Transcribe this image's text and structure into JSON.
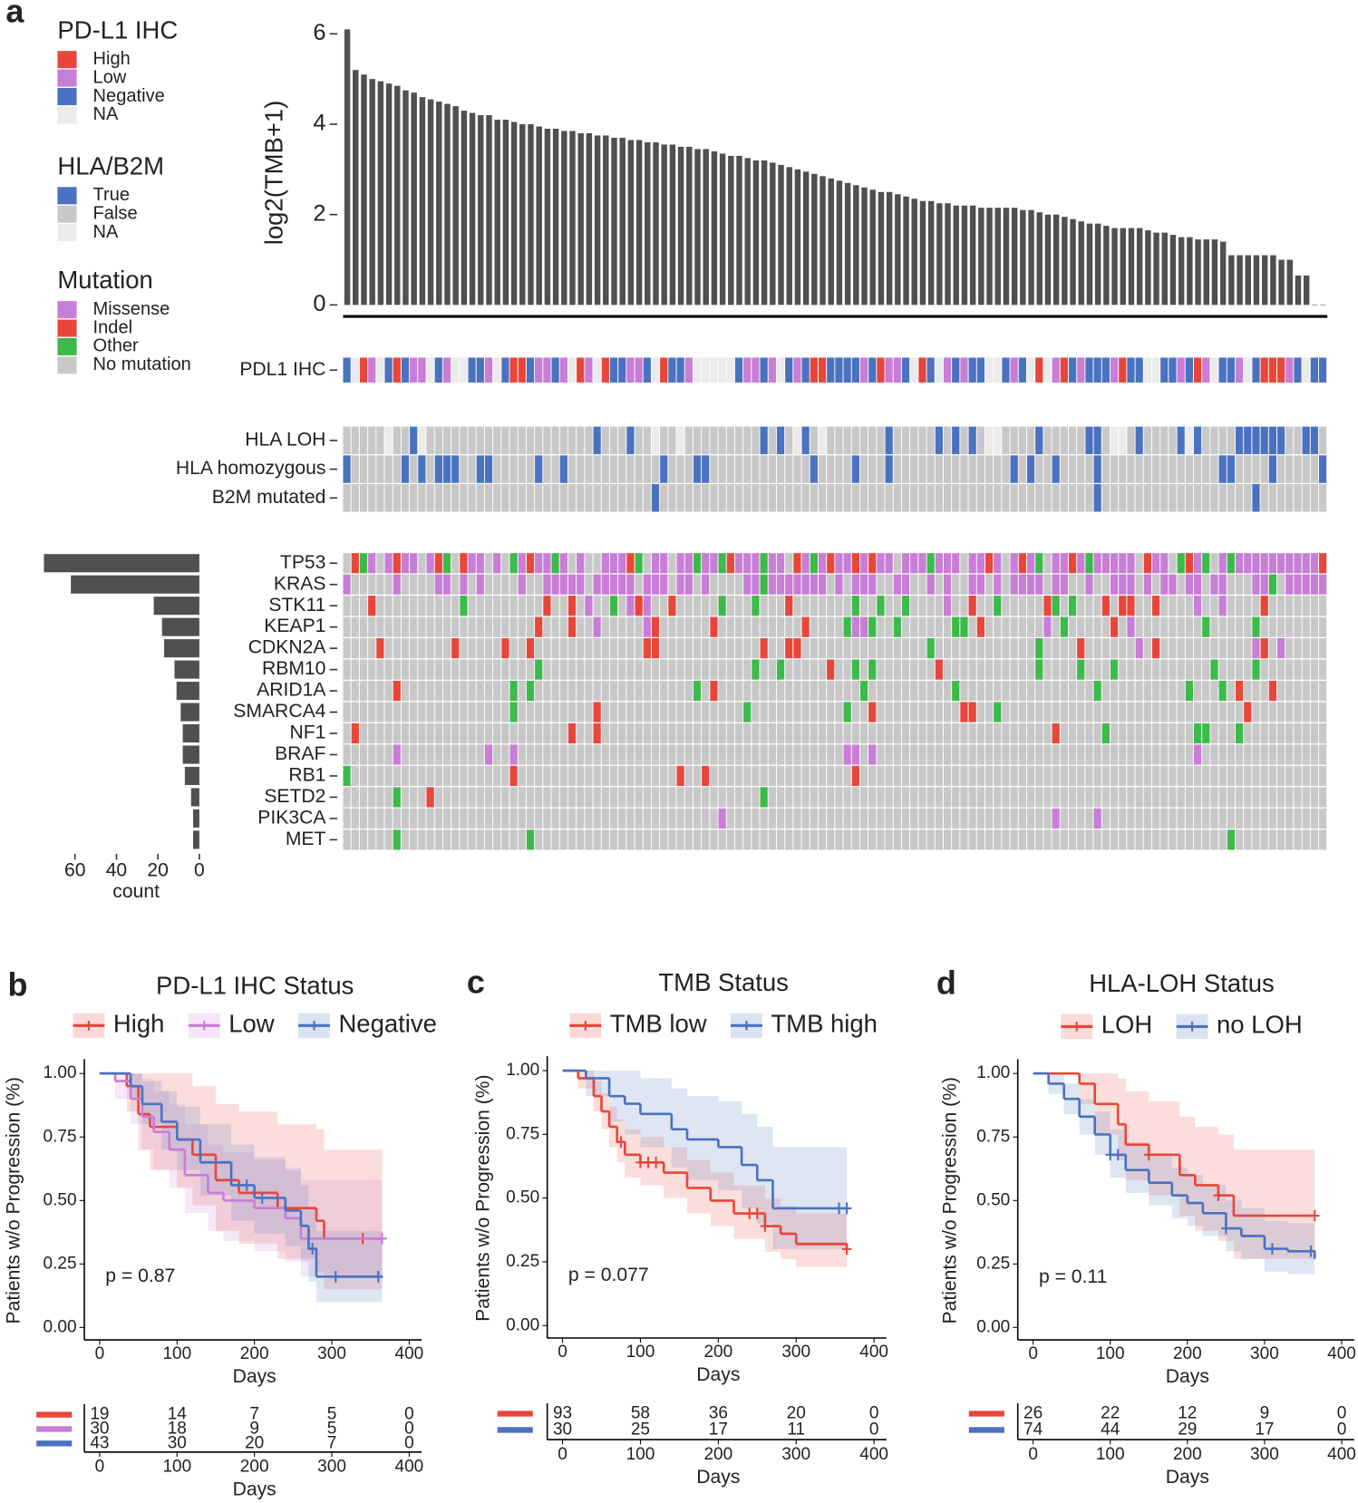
{
  "chart_data": [
    {
      "type": "oncoprint",
      "panel": "a",
      "ylabel": "log2(TMB+1)",
      "ylim": [
        0,
        6.3
      ],
      "yticks": [
        0,
        2,
        4,
        6
      ],
      "color": "#505050",
      "values": [
        6.1,
        5.2,
        5.1,
        5.0,
        4.95,
        4.9,
        4.85,
        4.75,
        4.7,
        4.6,
        4.55,
        4.5,
        4.45,
        4.4,
        4.3,
        4.25,
        4.2,
        4.2,
        4.1,
        4.1,
        4.05,
        4.0,
        4.0,
        3.95,
        3.9,
        3.9,
        3.85,
        3.85,
        3.8,
        3.8,
        3.75,
        3.75,
        3.7,
        3.7,
        3.65,
        3.65,
        3.6,
        3.6,
        3.55,
        3.55,
        3.5,
        3.5,
        3.45,
        3.45,
        3.4,
        3.35,
        3.3,
        3.3,
        3.25,
        3.2,
        3.2,
        3.15,
        3.1,
        3.05,
        3.0,
        2.95,
        2.9,
        2.85,
        2.8,
        2.75,
        2.7,
        2.65,
        2.6,
        2.55,
        2.5,
        2.5,
        2.45,
        2.4,
        2.35,
        2.3,
        2.3,
        2.25,
        2.25,
        2.2,
        2.2,
        2.2,
        2.15,
        2.15,
        2.15,
        2.15,
        2.15,
        2.1,
        2.1,
        2.05,
        2.0,
        2.0,
        1.95,
        1.9,
        1.85,
        1.8,
        1.8,
        1.75,
        1.7,
        1.7,
        1.7,
        1.7,
        1.65,
        1.6,
        1.6,
        1.55,
        1.5,
        1.5,
        1.45,
        1.45,
        1.45,
        1.4,
        1.1,
        1.1,
        1.1,
        1.1,
        1.1,
        1.1,
        1.0,
        1.0,
        0.65,
        0.65,
        0,
        0
      ],
      "count_label": "count",
      "count_xlim": [
        80,
        0
      ],
      "count_xticks": [
        60,
        40,
        20,
        0
      ],
      "legends": [
        {
          "title": "PD-L1 IHC",
          "entries": [
            {
              "name": "High",
              "color": "#e8463a"
            },
            {
              "name": "Low",
              "color": "#c87dd6"
            },
            {
              "name": "Negative",
              "color": "#4a72c0"
            },
            {
              "name": "NA",
              "color": "#ebebeb"
            }
          ],
          "tracks": [
            {
              "label": "PDL1 IHC",
              "codes": "2301320211321332213200211213013022112302213333321121321200222212011230231212233212303102122210223322120132213200012322"
            }
          ]
        },
        {
          "title": "HLA/B2M",
          "entries": [
            {
              "name": "True",
              "color": "#4a72c0"
            },
            {
              "name": "False",
              "color": "#c8c8c8"
            },
            {
              "name": "NA",
              "color": "#ebebeb"
            }
          ],
          "tracks": [
            {
              "label": "HLA LOH",
              "codes": "1111121102111111111111111111110111011211211111111101012012111111101111101010122111101111100122101111020111100000011001"
            },
            {
              "label": "HLA homozygous",
              "codes": "0111111010100011001111101101111111111101110011111111111101111011101111111111111101011011110111111111111110011110111110"
            },
            {
              "label": "B2M mutated",
              "codes": "1111111111111111111111111111111111111011111111111111111111111111111111111111111111111111110111111111111111111011111111"
            }
          ]
        },
        {
          "title": "Mutation",
          "entries": [
            {
              "name": "Missense",
              "color": "#c87dd6"
            },
            {
              "name": "Indel",
              "color": "#e8463a"
            },
            {
              "name": "Other",
              "color": "#3cba4a"
            },
            {
              "name": "No mutation",
              "color": "#c8c8c8"
            }
          ],
          "tracks": [
            {
              "label": "TP53",
              "count": 75,
              "codes": "3120301003012310030320100203033000123003002002100020031020100101003000200030010301023001020000031003210230200000000001"
            },
            {
              "label": "KRAS",
              "count": 62,
              "codes": "0333330333300303033330330000030000030003003033330020000000303000330033030330030300003003303300030300300300333002300000"
            },
            {
              "label": "STK11",
              "count": 22,
              "codes": "3331333333333323333333331331303323010331333332333233313333333233233233330331332333331232333131133133330330333313333333"
            },
            {
              "label": "KEAP1",
              "count": 18,
              "codes": "3333333333333333333333313331330333330133333313333333333133332002332333333223133333330323333313033333333233333233333333"
            },
            {
              "label": "CDKN2A",
              "count": 17,
              "codes": "3333133333333133333133133333333333331133333333333313311333333333333333233333333333323333133333303133333333333013033333"
            },
            {
              "label": "RBM10",
              "count": 12,
              "codes": "3333333333333333333333323333333333333333333333333233233333133232333333313333333333323333233323333333333323333233333333"
            },
            {
              "label": "ARID1A",
              "count": 11,
              "codes": "3333331333333333333323233333333333333333332313333333333333333323333333333233333333333333332333333333323332313331333333"
            },
            {
              "label": "SMARCA4",
              "count": 9,
              "codes": "3333333333333333333323333333331333333333333333332333333333332331333333333311332333333333333333333333333333331333333333"
            },
            {
              "label": "NF1",
              "count": 8,
              "codes": "3133333333333333333333333331331333333333333333333333333333333333333333333333333333333133333233333333332233323333333333"
            },
            {
              "label": "BRAF",
              "count": 8,
              "codes": "3333330333333333303303333333333333333333333333333333333333330030333333333333333333333333333333333333330333333333333333"
            },
            {
              "label": "RB1",
              "count": 7,
              "codes": "2333333333333333333313333333333333333333133133333333333333333133333333333333333333333333333333333333333333333333333333"
            },
            {
              "label": "SETD2",
              "count": 4,
              "codes": "3333332333133333333333333333333333333333333333333323333333333333333333333333333333333333333333333333333333333333333333"
            },
            {
              "label": "PIK3CA",
              "count": 3,
              "codes": "3333333333333333333333333333333333333333333330333333333333333333333333333333333333333033330333333333333333333333333333"
            },
            {
              "label": "MET",
              "count": 3,
              "codes": "3333332333333333333333233333333333333333333333333333333333333333333333333333333333333333333333333333333333233333333333"
            }
          ]
        }
      ]
    },
    {
      "type": "survival",
      "panel": "b",
      "title": "PD-L1 IHC Status",
      "xlabel": "Days",
      "ylabel": "Patients w/o Progression (%)",
      "annotation": "p = 0.87",
      "risk_xlabel": "Days",
      "xlim": [
        0,
        400
      ],
      "xticks": [
        0,
        100,
        200,
        300,
        400
      ],
      "ylim": [
        0,
        1
      ],
      "yticks": [
        {
          "value": 0,
          "label": "0.00"
        },
        {
          "value": 0.25,
          "label": "0.25"
        },
        {
          "value": 0.5,
          "label": "0.50"
        },
        {
          "value": 0.75,
          "label": "0.75"
        },
        {
          "value": 1,
          "label": "1.00"
        }
      ],
      "series": [
        {
          "name": "High",
          "color": "#e8463a",
          "x": [
            0,
            35,
            50,
            65,
            100,
            120,
            150,
            180,
            230,
            280,
            290,
            365
          ],
          "values": [
            1,
            0.95,
            0.84,
            0.79,
            0.74,
            0.68,
            0.58,
            0.53,
            0.47,
            0.42,
            0.35,
            0.35
          ],
          "lower": [
            1,
            0.85,
            0.7,
            0.62,
            0.55,
            0.48,
            0.38,
            0.33,
            0.27,
            0.22,
            0.15,
            0.15
          ],
          "upper": [
            1,
            1,
            1,
            1,
            1,
            0.95,
            0.88,
            0.85,
            0.8,
            0.78,
            0.7,
            0.7
          ],
          "censored": [
            340
          ],
          "at_risk": [
            19,
            14,
            7,
            5,
            0
          ]
        },
        {
          "name": "Low",
          "color": "#c87dd6",
          "x": [
            0,
            20,
            40,
            55,
            70,
            90,
            110,
            140,
            160,
            200,
            240,
            260,
            365
          ],
          "values": [
            1,
            0.97,
            0.9,
            0.83,
            0.77,
            0.7,
            0.6,
            0.53,
            0.5,
            0.47,
            0.43,
            0.35,
            0.35
          ],
          "lower": [
            1,
            0.9,
            0.8,
            0.7,
            0.62,
            0.55,
            0.45,
            0.38,
            0.34,
            0.3,
            0.26,
            0.2,
            0.2
          ],
          "upper": [
            1,
            1,
            1,
            0.98,
            0.93,
            0.88,
            0.8,
            0.72,
            0.69,
            0.66,
            0.63,
            0.58,
            0.58
          ],
          "censored": [
            365
          ],
          "at_risk": [
            30,
            18,
            9,
            5,
            0
          ]
        },
        {
          "name": "Negative",
          "color": "#4a72c0",
          "x": [
            0,
            40,
            55,
            80,
            100,
            130,
            170,
            200,
            240,
            260,
            270,
            280,
            365
          ],
          "values": [
            1,
            0.95,
            0.88,
            0.81,
            0.74,
            0.65,
            0.56,
            0.51,
            0.46,
            0.4,
            0.31,
            0.2,
            0.2
          ],
          "lower": [
            1,
            0.9,
            0.8,
            0.7,
            0.62,
            0.52,
            0.42,
            0.37,
            0.32,
            0.26,
            0.18,
            0.1,
            0.1
          ],
          "upper": [
            1,
            1,
            0.97,
            0.93,
            0.87,
            0.8,
            0.72,
            0.67,
            0.62,
            0.56,
            0.47,
            0.38,
            0.38
          ],
          "censored": [
            190,
            210,
            275,
            305,
            360
          ],
          "at_risk": [
            43,
            30,
            20,
            7,
            0
          ]
        }
      ]
    },
    {
      "type": "survival",
      "panel": "c",
      "title": "TMB Status",
      "xlabel": "Days",
      "ylabel": "Patients w/o Progression (%)",
      "annotation": "p = 0.077",
      "risk_xlabel": "Days",
      "xlim": [
        0,
        400
      ],
      "xticks": [
        0,
        100,
        200,
        300,
        400
      ],
      "ylim": [
        0,
        1
      ],
      "yticks": [
        {
          "value": 0,
          "label": "0.00"
        },
        {
          "value": 0.25,
          "label": "0.25"
        },
        {
          "value": 0.5,
          "label": "0.50"
        },
        {
          "value": 0.75,
          "label": "0.75"
        },
        {
          "value": 1,
          "label": "1.00"
        }
      ],
      "series": [
        {
          "name": "TMB low",
          "color": "#e8463a",
          "x": [
            0,
            20,
            40,
            50,
            60,
            70,
            80,
            100,
            130,
            160,
            190,
            220,
            260,
            280,
            300,
            365
          ],
          "values": [
            1,
            0.97,
            0.9,
            0.84,
            0.78,
            0.72,
            0.67,
            0.64,
            0.6,
            0.54,
            0.49,
            0.44,
            0.39,
            0.36,
            0.32,
            0.3
          ],
          "lower": [
            1,
            0.93,
            0.84,
            0.77,
            0.7,
            0.64,
            0.58,
            0.55,
            0.5,
            0.44,
            0.39,
            0.34,
            0.29,
            0.26,
            0.23,
            0.21
          ],
          "upper": [
            1,
            1,
            0.96,
            0.91,
            0.86,
            0.81,
            0.77,
            0.74,
            0.7,
            0.65,
            0.6,
            0.55,
            0.5,
            0.47,
            0.44,
            0.42
          ],
          "censored": [
            75,
            100,
            110,
            120,
            240,
            250,
            260,
            365
          ],
          "at_risk": [
            93,
            58,
            36,
            20,
            0
          ]
        },
        {
          "name": "TMB high",
          "color": "#4a72c0",
          "x": [
            0,
            30,
            60,
            80,
            100,
            140,
            160,
            200,
            230,
            250,
            270,
            365
          ],
          "values": [
            1,
            0.97,
            0.9,
            0.87,
            0.83,
            0.77,
            0.73,
            0.7,
            0.63,
            0.57,
            0.46,
            0.46
          ],
          "lower": [
            1,
            0.9,
            0.8,
            0.75,
            0.7,
            0.62,
            0.57,
            0.53,
            0.46,
            0.4,
            0.3,
            0.3
          ],
          "upper": [
            1,
            1,
            1,
            1,
            0.97,
            0.93,
            0.9,
            0.88,
            0.83,
            0.78,
            0.7,
            0.7
          ],
          "censored": [
            355,
            365
          ],
          "at_risk": [
            30,
            25,
            17,
            11,
            0
          ]
        }
      ]
    },
    {
      "type": "survival",
      "panel": "d",
      "title": "HLA-LOH Status",
      "xlabel": "Days",
      "ylabel": "Patients w/o Progression (%)",
      "annotation": "p = 0.11",
      "risk_xlabel": "Days",
      "xlim": [
        0,
        400
      ],
      "xticks": [
        0,
        100,
        200,
        300,
        400
      ],
      "ylim": [
        0,
        1
      ],
      "yticks": [
        {
          "value": 0,
          "label": "0.00"
        },
        {
          "value": 0.25,
          "label": "0.25"
        },
        {
          "value": 0.5,
          "label": "0.50"
        },
        {
          "value": 0.75,
          "label": "0.75"
        },
        {
          "value": 1,
          "label": "1.00"
        }
      ],
      "series": [
        {
          "name": "LOH",
          "color": "#e8463a",
          "x": [
            0,
            60,
            80,
            110,
            120,
            150,
            190,
            210,
            240,
            260,
            365
          ],
          "values": [
            1,
            0.96,
            0.88,
            0.8,
            0.72,
            0.68,
            0.6,
            0.56,
            0.52,
            0.44,
            0.44
          ],
          "lower": [
            1,
            0.88,
            0.76,
            0.66,
            0.58,
            0.52,
            0.44,
            0.38,
            0.34,
            0.27,
            0.27
          ],
          "upper": [
            1,
            1,
            1,
            0.98,
            0.93,
            0.89,
            0.83,
            0.79,
            0.76,
            0.7,
            0.7
          ],
          "censored": [
            150,
            240,
            365
          ],
          "at_risk": [
            26,
            22,
            12,
            9,
            0
          ]
        },
        {
          "name": "no LOH",
          "color": "#4a72c0",
          "x": [
            0,
            20,
            40,
            60,
            80,
            100,
            120,
            150,
            180,
            200,
            220,
            250,
            270,
            300,
            330,
            365
          ],
          "values": [
            1,
            0.96,
            0.9,
            0.83,
            0.76,
            0.68,
            0.62,
            0.57,
            0.52,
            0.49,
            0.45,
            0.39,
            0.36,
            0.31,
            0.3,
            0.27
          ],
          "lower": [
            1,
            0.92,
            0.84,
            0.76,
            0.68,
            0.59,
            0.53,
            0.48,
            0.43,
            0.4,
            0.36,
            0.3,
            0.27,
            0.22,
            0.21,
            0.18
          ],
          "upper": [
            1,
            1,
            0.96,
            0.9,
            0.85,
            0.78,
            0.73,
            0.68,
            0.63,
            0.6,
            0.56,
            0.5,
            0.47,
            0.42,
            0.41,
            0.38
          ],
          "censored": [
            100,
            110,
            250,
            310,
            360
          ],
          "at_risk": [
            74,
            44,
            29,
            17,
            0
          ]
        }
      ]
    }
  ]
}
